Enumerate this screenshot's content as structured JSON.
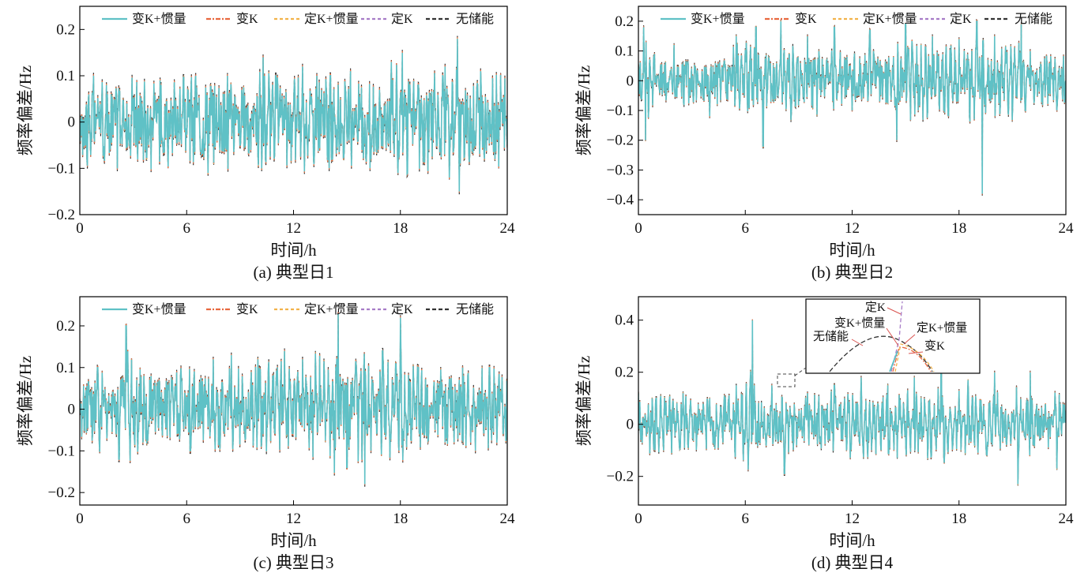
{
  "figure": {
    "colors": {
      "var_k_inertia": "#5fc1c6",
      "var_k": "#e8683f",
      "fixed_k_inertia": "#f2b24a",
      "fixed_k": "#a77cc7",
      "no_storage": "#333333",
      "axis": "#000000"
    }
  },
  "chart_data": [
    {
      "type": "line",
      "caption": "(a) 典型日1",
      "xlabel": "时间/h",
      "ylabel": "频率偏差/Hz",
      "xlim": [
        0,
        24
      ],
      "ylim": [
        -0.2,
        0.25
      ],
      "xticks": [
        0,
        6,
        12,
        18,
        24
      ],
      "xtick_labels": [
        "0",
        "6",
        "12",
        "18",
        "24"
      ],
      "yticks": [
        -0.2,
        -0.1,
        0,
        0.1,
        0.2
      ],
      "ytick_labels": [
        "−0.2",
        "−0.1",
        "0",
        "0.1",
        "0.2"
      ],
      "legend": [
        "变K+惯量",
        "变K",
        "定K+惯量",
        "定K",
        "无储能"
      ],
      "legend_position": "top",
      "series_note": "All five series overlap closely; peaks listed as key points",
      "key_points": {
        "x": [
          0,
          0.5,
          1.5,
          3,
          4.5,
          6.5,
          7.2,
          8.3,
          9,
          10.3,
          11,
          12.5,
          13.3,
          14,
          15.2,
          16.3,
          17.5,
          18.1,
          19,
          20.5,
          21.2,
          21.3,
          22.5,
          23.3,
          24
        ],
        "y": [
          0.01,
          0.06,
          0.08,
          0.05,
          0.09,
          0.1,
          -0.11,
          0.1,
          -0.05,
          0.14,
          0.1,
          0.12,
          0.1,
          -0.1,
          0.11,
          -0.1,
          0.13,
          0.15,
          0.08,
          0.12,
          0.18,
          -0.15,
          0.11,
          -0.08,
          -0.05
        ]
      }
    },
    {
      "type": "line",
      "caption": "(b) 典型日2",
      "xlabel": "时间/h",
      "ylabel": "频率偏差/Hz",
      "xlim": [
        0,
        24
      ],
      "ylim": [
        -0.45,
        0.25
      ],
      "xticks": [
        0,
        6,
        12,
        18,
        24
      ],
      "xtick_labels": [
        "0",
        "6",
        "12",
        "18",
        "24"
      ],
      "yticks": [
        -0.4,
        -0.3,
        -0.2,
        -0.1,
        0,
        0.1,
        0.2
      ],
      "ytick_labels": [
        "−0.4",
        "−0.3",
        "−0.2",
        "−0.1",
        "0",
        "0.1",
        "0.2"
      ],
      "legend": [
        "变K+惯量",
        "变K",
        "定K+惯量",
        "定K",
        "无储能"
      ],
      "legend_position": "top",
      "key_points": {
        "x": [
          0,
          0.3,
          0.4,
          2,
          4,
          5.5,
          6.6,
          7,
          8,
          9.5,
          11,
          12,
          13,
          14.5,
          15,
          16.5,
          18,
          19,
          19.3,
          20,
          21.5,
          22,
          23.5,
          24
        ],
        "y": [
          0.05,
          0.18,
          -0.2,
          0.12,
          -0.12,
          0.15,
          0.18,
          -0.22,
          0.2,
          0.15,
          0.18,
          -0.1,
          0.17,
          -0.2,
          0.19,
          0.15,
          0.14,
          0.2,
          -0.38,
          0.15,
          0.19,
          0.1,
          -0.1,
          0.0
        ]
      }
    },
    {
      "type": "line",
      "caption": "(c) 典型日3",
      "xlabel": "时间/h",
      "ylabel": "频率偏差/Hz",
      "xlim": [
        0,
        24
      ],
      "ylim": [
        -0.23,
        0.27
      ],
      "xticks": [
        0,
        6,
        12,
        18,
        24
      ],
      "xtick_labels": [
        "0",
        "6",
        "12",
        "18",
        "24"
      ],
      "yticks": [
        -0.2,
        -0.1,
        0,
        0.1,
        0.2
      ],
      "ytick_labels": [
        "−0.2",
        "−0.1",
        "0",
        "0.1",
        "0.2"
      ],
      "legend": [
        "变K+惯量",
        "变K",
        "定K+惯量",
        "定K",
        "无储能"
      ],
      "legend_position": "top",
      "key_points": {
        "x": [
          0,
          1,
          2.2,
          2.6,
          4,
          6.2,
          7.5,
          8.5,
          10,
          11.5,
          12.5,
          14.5,
          15,
          16,
          17,
          18,
          19,
          20.5,
          21.5,
          23,
          24
        ],
        "y": [
          0.02,
          0.1,
          -0.12,
          0.2,
          0.08,
          -0.1,
          0.12,
          0.13,
          0.12,
          0.14,
          0.12,
          0.23,
          -0.14,
          -0.18,
          0.14,
          0.22,
          0.1,
          -0.08,
          0.1,
          0.1,
          -0.03
        ]
      }
    },
    {
      "type": "line",
      "caption": "(d) 典型日4",
      "xlabel": "时间/h",
      "ylabel": "频率偏差/Hz",
      "xlim": [
        0,
        24
      ],
      "ylim": [
        -0.31,
        0.49
      ],
      "xticks": [
        0,
        6,
        12,
        18,
        24
      ],
      "xtick_labels": [
        "0",
        "6",
        "12",
        "18",
        "24"
      ],
      "yticks": [
        -0.2,
        0,
        0.2,
        0.4
      ],
      "ytick_labels": [
        "−0.2",
        "0",
        "0.2",
        "0.4"
      ],
      "inset": {
        "labels": [
          "定K",
          "变K+惯量",
          "定K+惯量",
          "无储能",
          "变K"
        ]
      },
      "key_points": {
        "x": [
          0,
          1,
          2.5,
          4,
          5.5,
          6.4,
          6.8,
          7.5,
          8.2,
          9.5,
          11,
          12.5,
          14,
          15.5,
          17,
          18.5,
          20,
          21.3,
          22,
          23.5,
          24
        ],
        "y": [
          0.12,
          0.1,
          0.12,
          0.1,
          0.15,
          0.4,
          -0.05,
          0.15,
          -0.19,
          0.12,
          0.15,
          0.18,
          0.15,
          0.18,
          0.2,
          0.17,
          0.2,
          -0.23,
          0.2,
          -0.17,
          0.05
        ]
      }
    }
  ]
}
